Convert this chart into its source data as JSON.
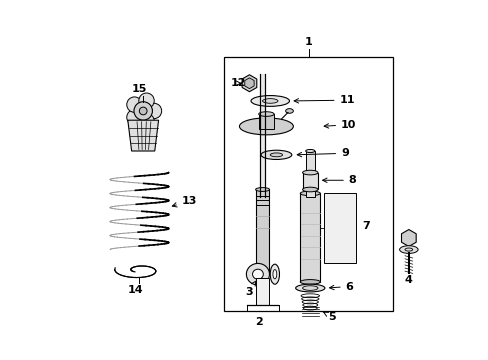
{
  "bg_color": "#ffffff",
  "line_color": "#000000",
  "gray_color": "#999999",
  "fig_width": 4.89,
  "fig_height": 3.6,
  "dpi": 100
}
